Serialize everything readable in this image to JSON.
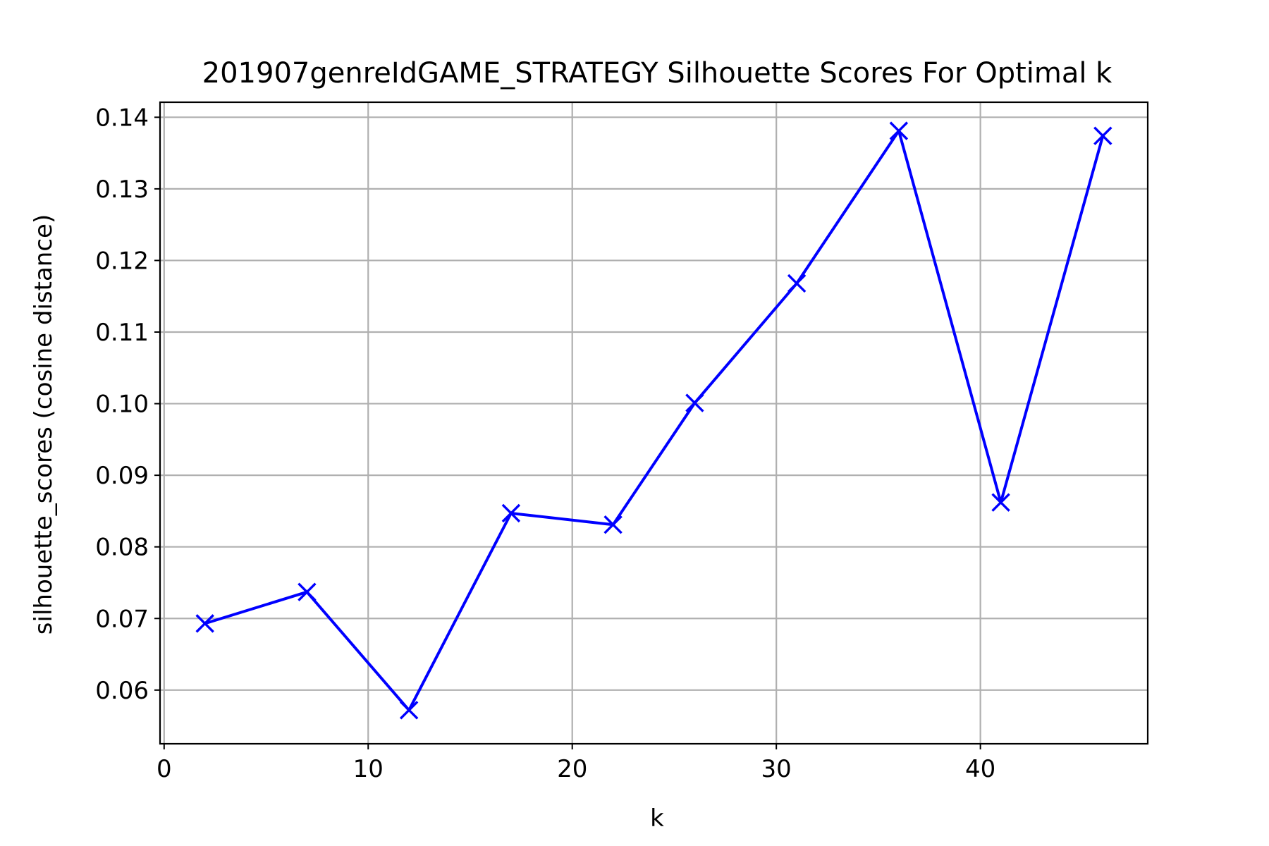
{
  "chart_data": {
    "type": "line",
    "title": "201907genreIdGAME_STRATEGY Silhouette Scores For Optimal k",
    "xlabel": "k",
    "ylabel": "silhouette_scores (cosine distance)",
    "xlim": [
      -0.2,
      48.2
    ],
    "ylim": [
      0.0525,
      0.1421
    ],
    "xticks": [
      0,
      10,
      20,
      30,
      40
    ],
    "xtick_labels": [
      "0",
      "10",
      "20",
      "30",
      "40"
    ],
    "yticks": [
      0.06,
      0.07,
      0.08,
      0.09,
      0.1,
      0.11,
      0.12,
      0.13,
      0.14
    ],
    "ytick_labels": [
      "0.06",
      "0.07",
      "0.08",
      "0.09",
      "0.10",
      "0.11",
      "0.12",
      "0.13",
      "0.14"
    ],
    "grid": true,
    "marker": "x",
    "color": "#0000ff",
    "series": [
      {
        "x": [
          2,
          7,
          12,
          17,
          22,
          26,
          31,
          36,
          41,
          46
        ],
        "values": [
          0.0693,
          0.0737,
          0.0572,
          0.0847,
          0.0831,
          0.1001,
          0.1168,
          0.1381,
          0.0862,
          0.1374
        ]
      }
    ]
  }
}
